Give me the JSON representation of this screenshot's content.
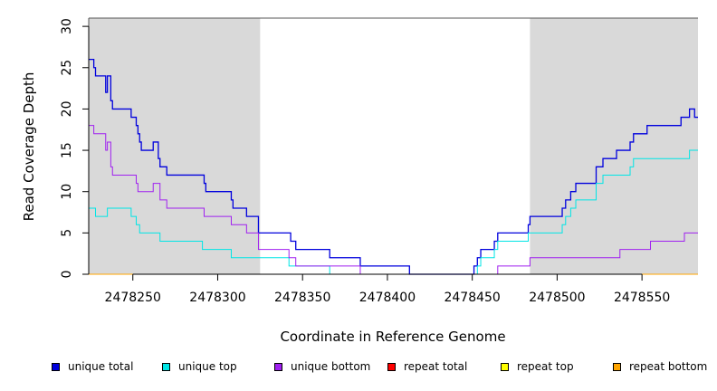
{
  "chart_data": {
    "type": "line",
    "xlabel": "Coordinate in Reference Genome",
    "ylabel": "Read Coverage Depth",
    "xlim": [
      2478224,
      2478583
    ],
    "ylim": [
      0,
      31
    ],
    "xticks": [
      2478250,
      2478300,
      2478350,
      2478400,
      2478450,
      2478500,
      2478550
    ],
    "yticks": [
      0,
      5,
      10,
      15,
      20,
      25,
      30
    ],
    "shaded_regions": [
      [
        2478224,
        2478325
      ],
      [
        2478484,
        2478583
      ]
    ],
    "shade_color": "#d9d9d9",
    "series": [
      {
        "name": "unique total",
        "color": "#0000dd",
        "points": [
          [
            2478224,
            26
          ],
          [
            2478227,
            25
          ],
          [
            2478228,
            24
          ],
          [
            2478234,
            22
          ],
          [
            2478235,
            24
          ],
          [
            2478237,
            21
          ],
          [
            2478238,
            20
          ],
          [
            2478249,
            19
          ],
          [
            2478252,
            18
          ],
          [
            2478253,
            17
          ],
          [
            2478254,
            16
          ],
          [
            2478255,
            15
          ],
          [
            2478262,
            16
          ],
          [
            2478265,
            14
          ],
          [
            2478266,
            13
          ],
          [
            2478270,
            12
          ],
          [
            2478292,
            11
          ],
          [
            2478293,
            10
          ],
          [
            2478308,
            9
          ],
          [
            2478309,
            8
          ],
          [
            2478317,
            7
          ],
          [
            2478324,
            5
          ],
          [
            2478343,
            4
          ],
          [
            2478346,
            3
          ],
          [
            2478366,
            2
          ],
          [
            2478384,
            1
          ],
          [
            2478413,
            0
          ],
          [
            2478451,
            1
          ],
          [
            2478453,
            2
          ],
          [
            2478455,
            3
          ],
          [
            2478463,
            4
          ],
          [
            2478465,
            5
          ],
          [
            2478483,
            6
          ],
          [
            2478484,
            7
          ],
          [
            2478503,
            8
          ],
          [
            2478505,
            9
          ],
          [
            2478508,
            10
          ],
          [
            2478511,
            11
          ],
          [
            2478523,
            13
          ],
          [
            2478527,
            14
          ],
          [
            2478535,
            15
          ],
          [
            2478543,
            16
          ],
          [
            2478545,
            17
          ],
          [
            2478553,
            18
          ],
          [
            2478573,
            19
          ],
          [
            2478578,
            20
          ],
          [
            2478581,
            19
          ],
          [
            2478583,
            19
          ]
        ]
      },
      {
        "name": "unique top",
        "color": "#00e5e5",
        "points": [
          [
            2478224,
            8
          ],
          [
            2478228,
            7
          ],
          [
            2478235,
            8
          ],
          [
            2478249,
            7
          ],
          [
            2478252,
            6
          ],
          [
            2478254,
            5
          ],
          [
            2478266,
            4
          ],
          [
            2478291,
            3
          ],
          [
            2478308,
            2
          ],
          [
            2478342,
            1
          ],
          [
            2478366,
            0
          ],
          [
            2478451,
            0
          ],
          [
            2478453,
            1
          ],
          [
            2478455,
            2
          ],
          [
            2478463,
            3
          ],
          [
            2478465,
            4
          ],
          [
            2478483,
            5
          ],
          [
            2478503,
            6
          ],
          [
            2478505,
            7
          ],
          [
            2478508,
            8
          ],
          [
            2478511,
            9
          ],
          [
            2478523,
            11
          ],
          [
            2478527,
            12
          ],
          [
            2478543,
            13
          ],
          [
            2478545,
            14
          ],
          [
            2478578,
            15
          ],
          [
            2478583,
            15
          ]
        ]
      },
      {
        "name": "unique bottom",
        "color": "#a020f0",
        "points": [
          [
            2478224,
            18
          ],
          [
            2478227,
            17
          ],
          [
            2478234,
            15
          ],
          [
            2478235,
            16
          ],
          [
            2478237,
            13
          ],
          [
            2478238,
            12
          ],
          [
            2478252,
            11
          ],
          [
            2478253,
            10
          ],
          [
            2478262,
            11
          ],
          [
            2478266,
            9
          ],
          [
            2478270,
            8
          ],
          [
            2478292,
            7
          ],
          [
            2478308,
            6
          ],
          [
            2478317,
            5
          ],
          [
            2478324,
            3
          ],
          [
            2478342,
            2
          ],
          [
            2478346,
            1
          ],
          [
            2478384,
            0
          ],
          [
            2478465,
            1
          ],
          [
            2478484,
            2
          ],
          [
            2478537,
            3
          ],
          [
            2478555,
            4
          ],
          [
            2478575,
            5
          ],
          [
            2478583,
            5
          ]
        ]
      },
      {
        "name": "repeat total",
        "color": "#ff0000",
        "points": [
          [
            2478224,
            0
          ],
          [
            2478583,
            0
          ]
        ]
      },
      {
        "name": "repeat top",
        "color": "#ffff00",
        "points": [
          [
            2478224,
            0
          ],
          [
            2478583,
            0
          ]
        ]
      },
      {
        "name": "repeat bottom",
        "color": "#ffa500",
        "points": [
          [
            2478224,
            0
          ],
          [
            2478583,
            0
          ]
        ]
      }
    ]
  }
}
